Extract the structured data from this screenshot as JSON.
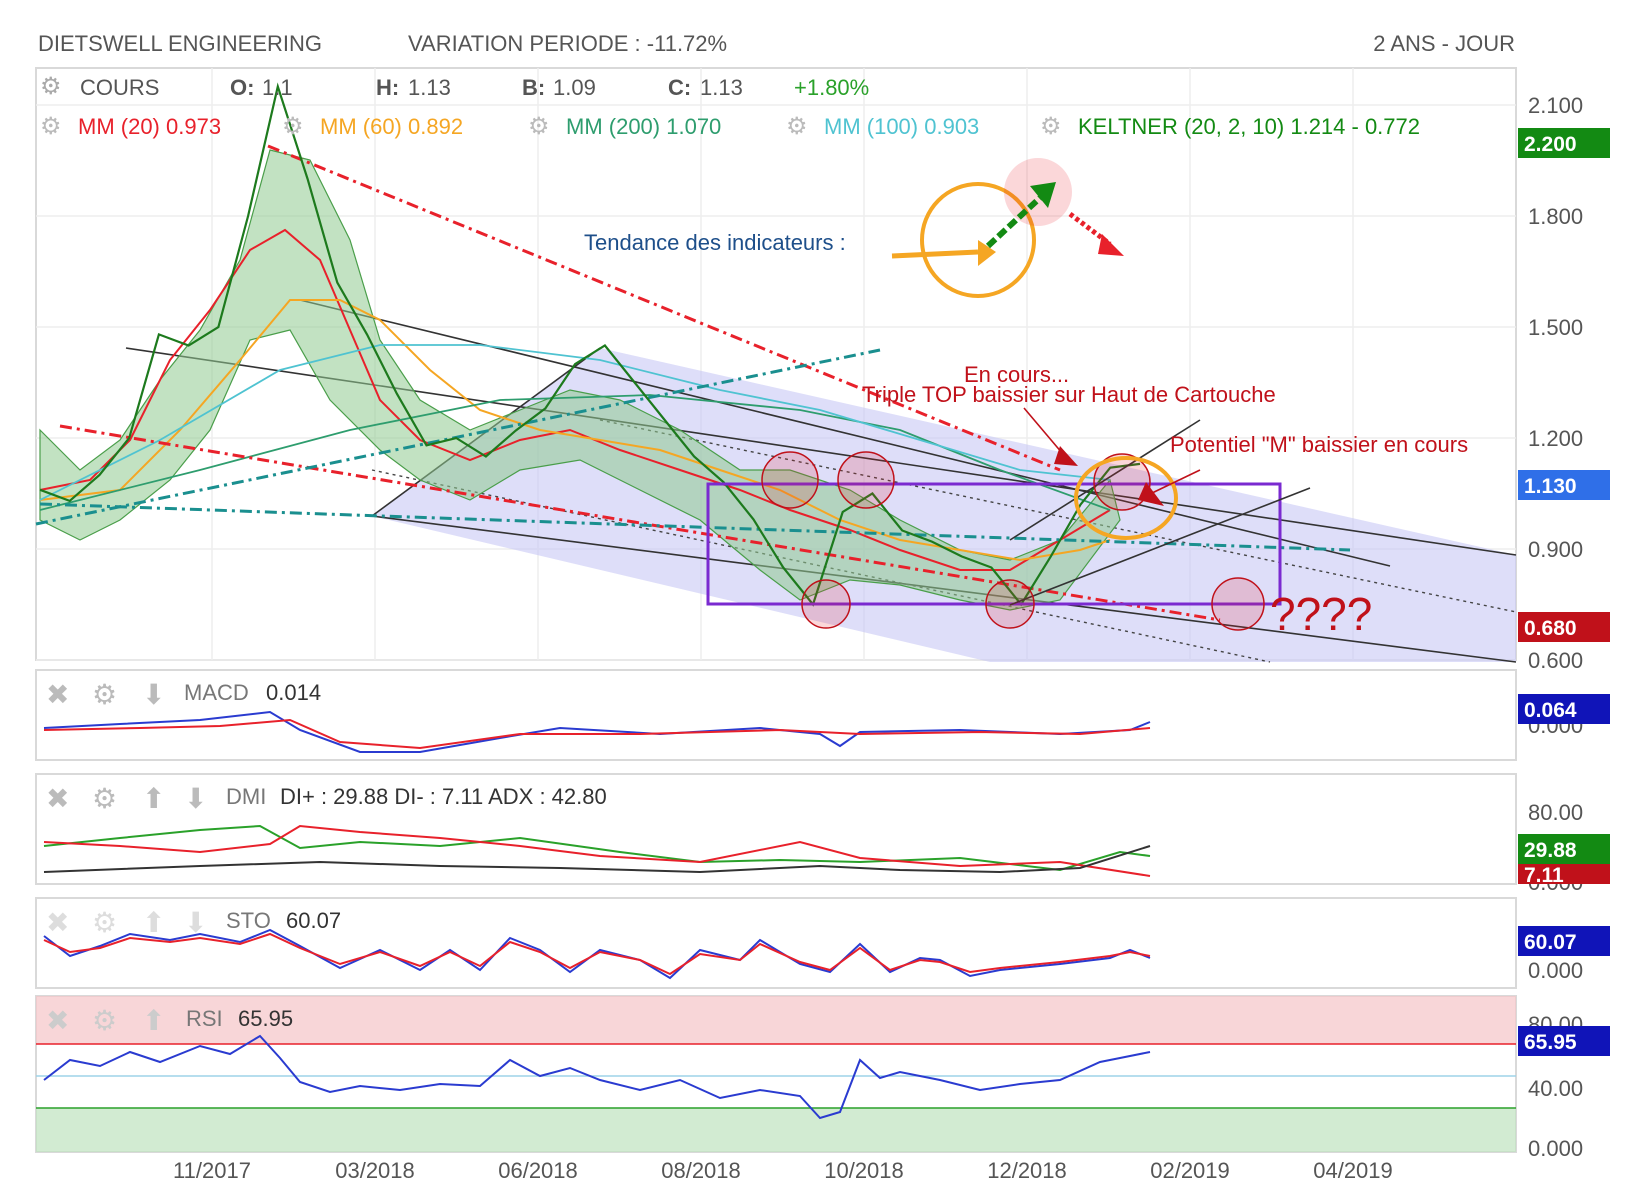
{
  "header": {
    "name": "DIETSWELL ENGINEERING",
    "variation": "VARIATION PERIODE : -11.72%",
    "period": "2 ANS - JOUR"
  },
  "ohlc": {
    "cours_label": "COURS",
    "o_label": "O:",
    "o_value": "1.1",
    "h_label": "H:",
    "h_value": "1.13",
    "b_label": "B:",
    "b_value": "1.09",
    "c_label": "C:",
    "c_value": "1.13",
    "change": "+1.80%"
  },
  "indicators": [
    {
      "label": "MM (20)",
      "value": "0.973",
      "color": "#e8212b"
    },
    {
      "label": "MM (60)",
      "value": "0.892",
      "color": "#f5a623"
    },
    {
      "label": "MM (200)",
      "value": "1.070",
      "color": "#2e9d6e"
    },
    {
      "label": "MM (100)",
      "value": "0.903",
      "color": "#4fc3d1"
    },
    {
      "label": "KELTNER (20, 2, 10)",
      "value": "1.214 - 0.772",
      "color": "#138a13"
    }
  ],
  "annotations": {
    "tendance": "Tendance des indicateurs :",
    "en_cours": "En cours...",
    "triple_top": "Triple TOP baissier sur Haut de Cartouche",
    "potentiel_m": "Potentiel \"M\" baissier en cours",
    "question": "????"
  },
  "price_tags": {
    "top": "2.200",
    "current": "1.130",
    "bottom": "0.680",
    "top_color": "#138a13",
    "current_color": "#2f6fe8",
    "bottom_color": "#c0111a"
  },
  "price_axis": [
    "2.100",
    "1.800",
    "1.500",
    "1.200",
    "0.900",
    "0.600"
  ],
  "macd": {
    "label": "MACD",
    "value": "0.014",
    "tag": "0.064",
    "axis": [
      "0.000"
    ]
  },
  "dmi": {
    "label": "DMI",
    "values": "DI+ : 29.88 DI- : 7.11 ADX : 42.80",
    "tag_plus": "29.88",
    "tag_minus": "7.11",
    "axis": [
      "80.00",
      "0.000"
    ]
  },
  "sto": {
    "label": "STO",
    "value": "60.07",
    "tag": "60.07",
    "axis": [
      "0.000"
    ]
  },
  "rsi": {
    "label": "RSI",
    "value": "65.95",
    "tag": "65.95",
    "axis": [
      "80.00",
      "40.00",
      "0.000"
    ]
  },
  "chart_data": {
    "type": "line",
    "x_ticks": [
      "11/2017",
      "03/2018",
      "06/2018",
      "08/2018",
      "10/2018",
      "12/2018",
      "02/2019",
      "04/2019"
    ],
    "ylim": [
      0.6,
      2.2
    ],
    "grid": true,
    "close_series": [
      1.06,
      1.03,
      1.1,
      1.2,
      1.48,
      1.45,
      1.5,
      1.8,
      2.15,
      1.9,
      1.62,
      1.48,
      1.32,
      1.18,
      1.2,
      1.15,
      1.22,
      1.28,
      1.4,
      1.45,
      1.35,
      1.25,
      1.15,
      1.08,
      0.98,
      0.85,
      0.75,
      1.0,
      1.05,
      0.95,
      0.92,
      0.88,
      0.85,
      0.75,
      0.88,
      1.02,
      1.12,
      1.13
    ]
  }
}
